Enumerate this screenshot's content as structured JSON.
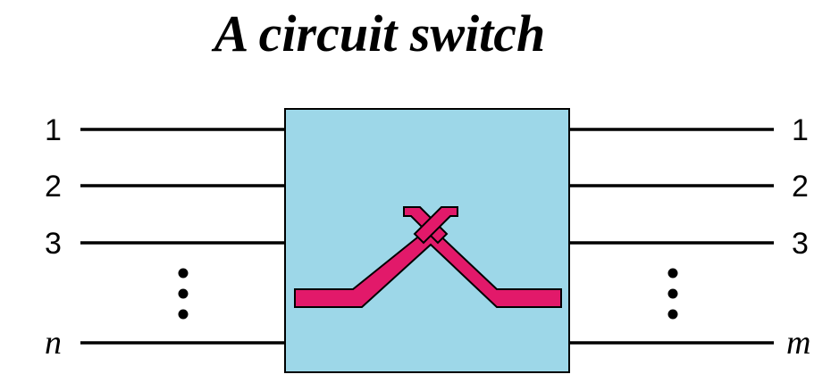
{
  "title": "A circuit switch",
  "inputs": [
    "1",
    "2",
    "3",
    "n"
  ],
  "outputs": [
    "1",
    "2",
    "3",
    "m"
  ],
  "colors": {
    "switch_box": "#9dd7e8",
    "connector": "#e2196a",
    "wire": "#000000"
  },
  "icons": {
    "ellipsis": "vertical-ellipsis-icon",
    "connector": "crossing-path-icon"
  }
}
